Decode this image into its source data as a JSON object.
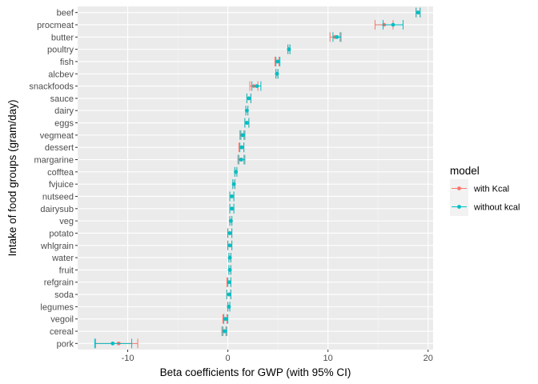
{
  "chart_data": {
    "type": "scatter",
    "variant": "dot-and-whisker (coefficient plot)",
    "xlabel": "Beta coefficients for GWP (with 95% CI)",
    "ylabel": "Intake of food groups (gram/day)",
    "xlim": [
      -15,
      20.5
    ],
    "xticks": [
      -10,
      0,
      10,
      20
    ],
    "xtick_labels": [
      "-10",
      "0",
      "10",
      "20"
    ],
    "grid": true,
    "legend": {
      "title": "model",
      "placement": "right",
      "entries": [
        "with Kcal",
        "without kcal"
      ]
    },
    "categories": [
      "beef",
      "procmeat",
      "butter",
      "poultry",
      "fish",
      "alcbev",
      "snackfoods",
      "sauce",
      "dairy",
      "eggs",
      "vegmeat",
      "dessert",
      "margarine",
      "cofftea",
      "fvjuice",
      "nutseed",
      "dairysub",
      "veg",
      "potato",
      "whlgrain",
      "water",
      "fruit",
      "refgrain",
      "soda",
      "legumes",
      "vegoil",
      "cereal",
      "pork"
    ],
    "series": [
      {
        "name": "with Kcal",
        "color": "#F8766D",
        "estimate": [
          19.0,
          15.6,
          10.7,
          6.1,
          4.9,
          4.9,
          2.6,
          2.1,
          1.9,
          1.9,
          1.4,
          1.35,
          1.3,
          0.8,
          0.6,
          0.4,
          0.4,
          0.3,
          0.2,
          0.2,
          0.2,
          0.2,
          0.1,
          0.1,
          0.1,
          -0.3,
          -0.4,
          -10.9
        ],
        "lower": [
          18.8,
          14.7,
          10.2,
          6.0,
          4.7,
          4.8,
          2.2,
          1.9,
          1.8,
          1.7,
          1.2,
          1.1,
          1.0,
          0.7,
          0.5,
          0.2,
          0.2,
          0.2,
          0.0,
          0.0,
          0.1,
          0.1,
          -0.1,
          -0.1,
          0.0,
          -0.5,
          -0.6,
          -13.2
        ],
        "upper": [
          19.2,
          16.5,
          11.2,
          6.2,
          5.1,
          5.0,
          3.0,
          2.3,
          2.0,
          2.1,
          1.6,
          1.6,
          1.6,
          0.9,
          0.7,
          0.6,
          0.6,
          0.4,
          0.4,
          0.4,
          0.3,
          0.3,
          0.3,
          0.3,
          0.2,
          -0.1,
          -0.2,
          -9.0
        ]
      },
      {
        "name": "without kcal",
        "color": "#00BFC4",
        "estimate": [
          19.0,
          16.5,
          10.9,
          6.1,
          5.0,
          4.9,
          2.9,
          2.1,
          1.9,
          1.9,
          1.5,
          1.4,
          1.35,
          0.8,
          0.6,
          0.4,
          0.4,
          0.3,
          0.2,
          0.2,
          0.2,
          0.2,
          0.15,
          0.15,
          0.1,
          -0.2,
          -0.3,
          -11.5
        ],
        "lower": [
          18.8,
          15.5,
          10.5,
          6.0,
          4.8,
          4.8,
          2.4,
          1.9,
          1.8,
          1.7,
          1.3,
          1.2,
          1.1,
          0.7,
          0.5,
          0.2,
          0.2,
          0.2,
          0.0,
          0.0,
          0.1,
          0.1,
          0.0,
          -0.1,
          0.0,
          -0.4,
          -0.5,
          -13.3
        ],
        "upper": [
          19.2,
          17.5,
          11.3,
          6.2,
          5.2,
          5.0,
          3.3,
          2.3,
          2.0,
          2.1,
          1.7,
          1.6,
          1.7,
          0.9,
          0.7,
          0.6,
          0.6,
          0.4,
          0.4,
          0.4,
          0.3,
          0.3,
          0.3,
          0.3,
          0.2,
          0.0,
          -0.1,
          -9.6
        ]
      }
    ]
  }
}
